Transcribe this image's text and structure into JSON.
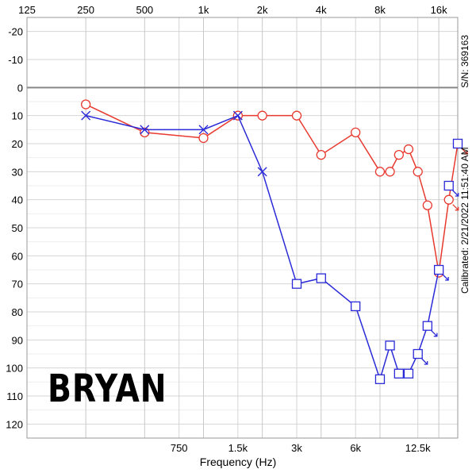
{
  "name_label": "BRYAN",
  "calibration": "Calibrated: 2/21/2022 11:51:40 AM",
  "serial": "S/N: 369163",
  "chart_data": {
    "type": "line",
    "xlabel": "Frequency (Hz)",
    "ylabel": "",
    "x_scale": "log",
    "x_range_hz": [
      125,
      20000
    ],
    "ylim": [
      -25,
      125
    ],
    "y_inverted": true,
    "grid": true,
    "top_ticks": [
      {
        "label": "125",
        "hz": 125
      },
      {
        "label": "250",
        "hz": 250
      },
      {
        "label": "500",
        "hz": 500
      },
      {
        "label": "1k",
        "hz": 1000
      },
      {
        "label": "2k",
        "hz": 2000
      },
      {
        "label": "4k",
        "hz": 4000
      },
      {
        "label": "8k",
        "hz": 8000
      },
      {
        "label": "16k",
        "hz": 16000
      }
    ],
    "bottom_ticks": [
      {
        "label": "750",
        "hz": 750
      },
      {
        "label": "1.5k",
        "hz": 1500
      },
      {
        "label": "3k",
        "hz": 3000
      },
      {
        "label": "6k",
        "hz": 6000
      },
      {
        "label": "12.5k",
        "hz": 12500
      }
    ],
    "y_ticks": [
      -20,
      -10,
      0,
      10,
      20,
      30,
      40,
      50,
      60,
      70,
      80,
      90,
      100,
      110,
      120
    ],
    "reference_line_db": 0,
    "series": [
      {
        "color": "#e8392f",
        "marker": "circle",
        "points": [
          [
            250,
            6
          ],
          [
            500,
            16
          ],
          [
            1000,
            18
          ],
          [
            1500,
            10
          ],
          [
            2000,
            10
          ],
          [
            3000,
            10
          ],
          [
            4000,
            24
          ],
          [
            6000,
            16
          ],
          [
            8000,
            30
          ],
          [
            9000,
            30
          ],
          [
            10000,
            24
          ],
          [
            11200,
            22
          ],
          [
            12500,
            30
          ],
          [
            14000,
            42
          ],
          [
            16000,
            66
          ],
          [
            18000,
            40
          ],
          [
            20000,
            20
          ]
        ],
        "no_response": [
          {
            "hz": 18000,
            "db": 40
          },
          {
            "hz": 20000,
            "db": 20
          }
        ]
      },
      {
        "color": "#2a2ad8",
        "marker": "cross_square",
        "points": [
          [
            250,
            10,
            "x"
          ],
          [
            500,
            15,
            "x"
          ],
          [
            1000,
            15,
            "x"
          ],
          [
            1500,
            10,
            "x"
          ],
          [
            2000,
            30,
            "x"
          ],
          [
            3000,
            70,
            "s"
          ],
          [
            4000,
            68,
            "s"
          ],
          [
            6000,
            78,
            "s"
          ],
          [
            8000,
            104,
            "s"
          ],
          [
            9000,
            92,
            "s"
          ],
          [
            10000,
            102,
            "s"
          ],
          [
            11200,
            102,
            "s"
          ],
          [
            12500,
            95,
            "s"
          ],
          [
            14000,
            85,
            "s"
          ],
          [
            16000,
            65,
            "s"
          ],
          [
            18000,
            35,
            "s"
          ],
          [
            20000,
            20,
            "s"
          ]
        ],
        "line_end_hz": 16000,
        "no_response": [
          {
            "hz": 12500,
            "db": 95
          },
          {
            "hz": 14000,
            "db": 85
          },
          {
            "hz": 16000,
            "db": 65
          },
          {
            "hz": 18000,
            "db": 35
          }
        ]
      }
    ]
  }
}
